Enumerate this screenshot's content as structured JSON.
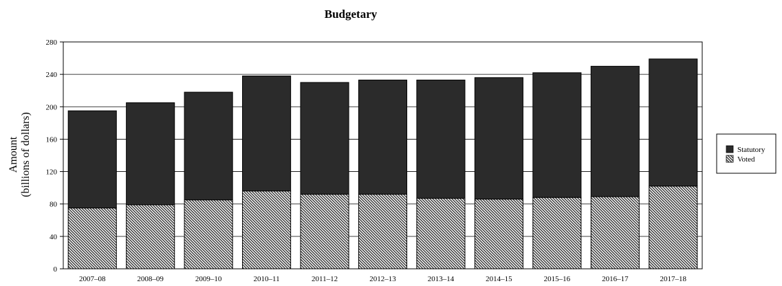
{
  "chart_data": {
    "type": "bar",
    "stacked": true,
    "title": "Budgetary",
    "ylabel_lines": [
      "Amount",
      "(billions of dollars)"
    ],
    "xlabel": "",
    "categories": [
      "2007–08",
      "2008–09",
      "2009–10",
      "2010–11",
      "2011–12",
      "2012–13",
      "2013–14",
      "2014–15",
      "2015–16",
      "2016–17",
      "2017–18"
    ],
    "series": [
      {
        "name": "Voted",
        "values": [
          75,
          79,
          85,
          96,
          92,
          92,
          87,
          86,
          88,
          89,
          102
        ],
        "pattern": "diagonal-hatch"
      },
      {
        "name": "Statutory",
        "values": [
          120,
          126,
          133,
          142,
          138,
          141,
          146,
          150,
          154,
          161,
          157
        ],
        "color": "#2b2b2b"
      }
    ],
    "ylim": [
      0,
      280
    ],
    "yticks": [
      "0",
      "40",
      "80",
      "120",
      "160",
      "200",
      "240",
      "280"
    ],
    "grid": true,
    "legend": {
      "placement": "right",
      "entries": [
        "Statutory",
        "Voted"
      ]
    },
    "colors": {
      "statutory": "#2b2b2b",
      "voted_hatch": "#333333",
      "background": "#ffffff"
    }
  }
}
